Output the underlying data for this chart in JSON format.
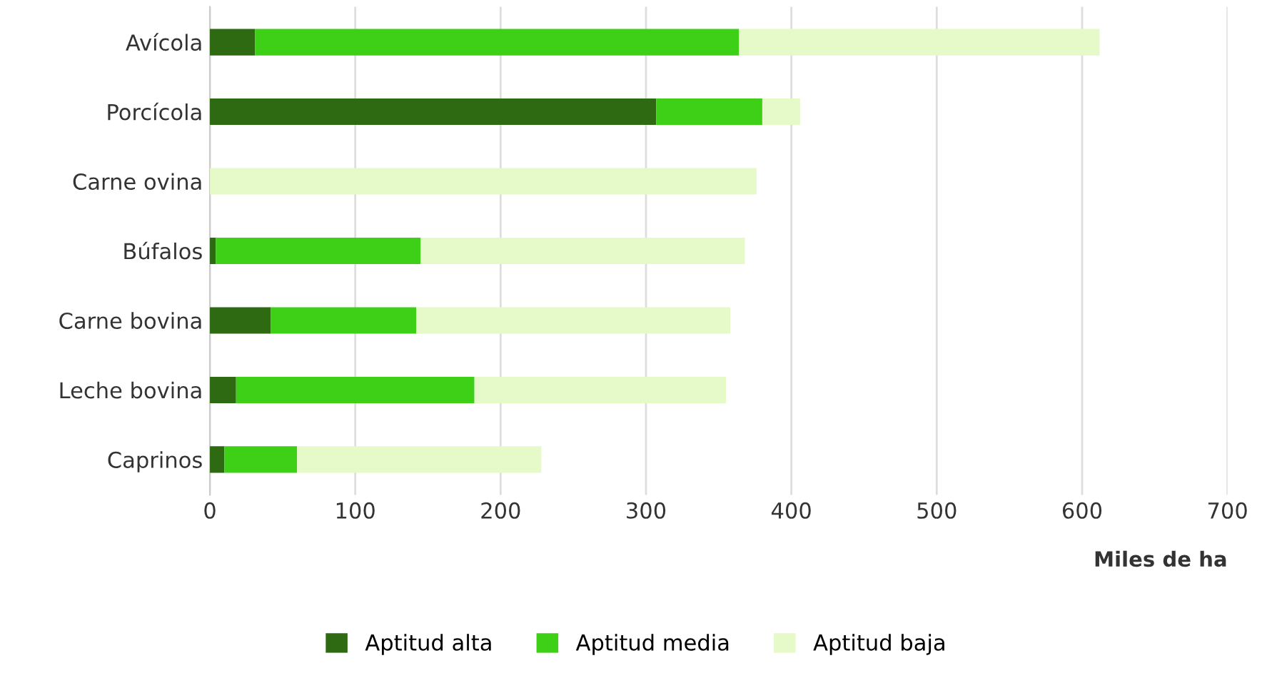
{
  "chart_data": {
    "type": "bar",
    "orientation": "horizontal",
    "stacked": true,
    "xlabel": "Miles de ha",
    "categories": [
      "Avícola",
      "Porcícola",
      "Carne ovina",
      "Búfalos",
      "Carne bovina",
      "Leche bovina",
      "Caprinos"
    ],
    "series": [
      {
        "name": "Aptitud alta",
        "color": "#2d6a12",
        "values": [
          31,
          307,
          0,
          4,
          42,
          18,
          10
        ]
      },
      {
        "name": "Aptitud media",
        "color": "#3ecf17",
        "values": [
          333,
          73,
          0,
          141,
          100,
          164,
          50
        ]
      },
      {
        "name": "Aptitud baja",
        "color": "#e6f9c8",
        "values": [
          248,
          26,
          376,
          223,
          216,
          173,
          168
        ]
      }
    ],
    "xlim": [
      0,
      700
    ],
    "xticks": [
      0,
      100,
      200,
      300,
      400,
      500,
      600,
      700
    ],
    "grid": "x",
    "legend": "bottom"
  }
}
